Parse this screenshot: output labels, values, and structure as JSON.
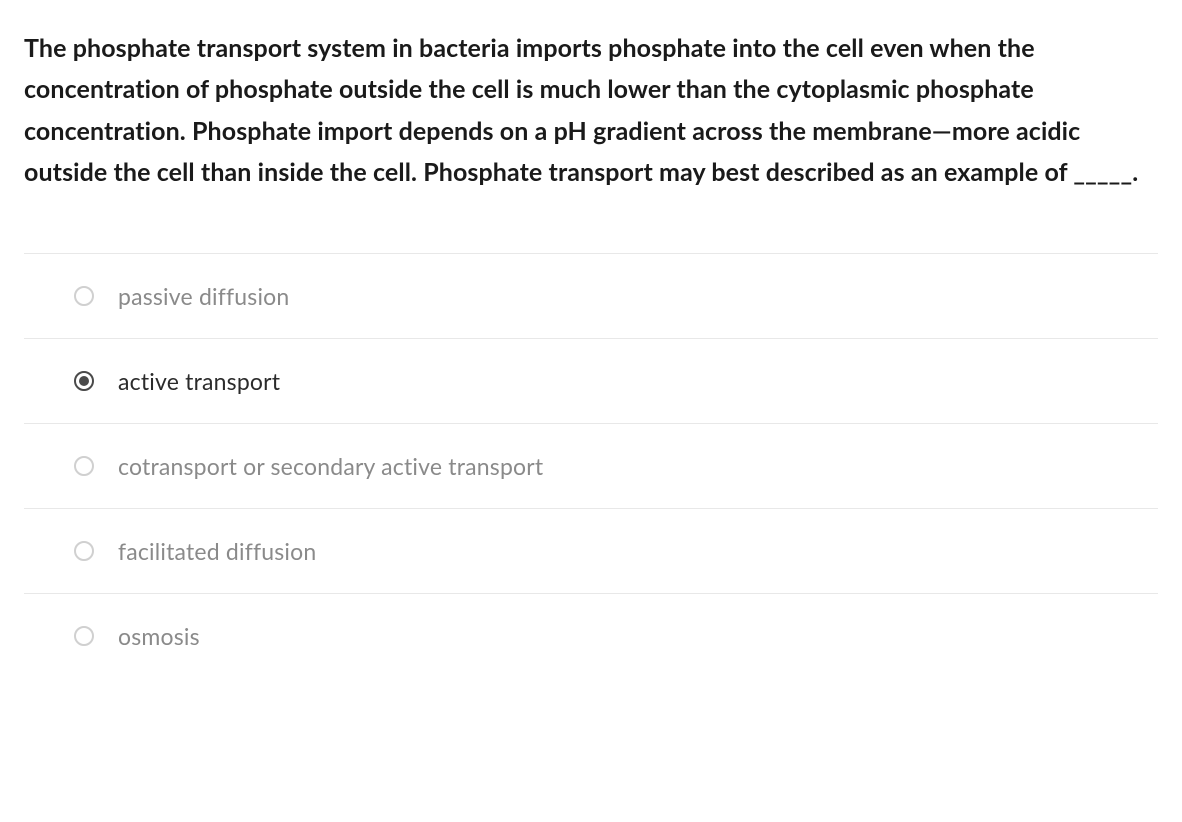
{
  "question": {
    "text": "The phosphate transport system in bacteria imports phosphate into the cell even when the concentration of phosphate outside the cell is much lower than the cytoplasmic phosphate concentration. Phosphate import depends on a pH gradient across the membrane—more acidic outside the cell than inside the cell. Phosphate transport may best described as an example of _____."
  },
  "options": [
    {
      "label": "passive diffusion",
      "selected": false
    },
    {
      "label": "active transport",
      "selected": true
    },
    {
      "label": "cotransport or secondary active transport",
      "selected": false
    },
    {
      "label": "facilitated diffusion",
      "selected": false
    },
    {
      "label": "osmosis",
      "selected": false
    }
  ],
  "styling": {
    "question_font_size": 25,
    "question_font_weight": 700,
    "question_color": "#1a1a1a",
    "option_font_size": 23,
    "option_color_unselected": "#8a8a8a",
    "option_color_selected": "#2b2b2b",
    "radio_border_unselected": "#d0d0d0",
    "radio_border_selected": "#4a4a4a",
    "radio_fill_selected": "#4a4a4a",
    "divider_color": "#e8e8e8",
    "background_color": "#ffffff"
  }
}
